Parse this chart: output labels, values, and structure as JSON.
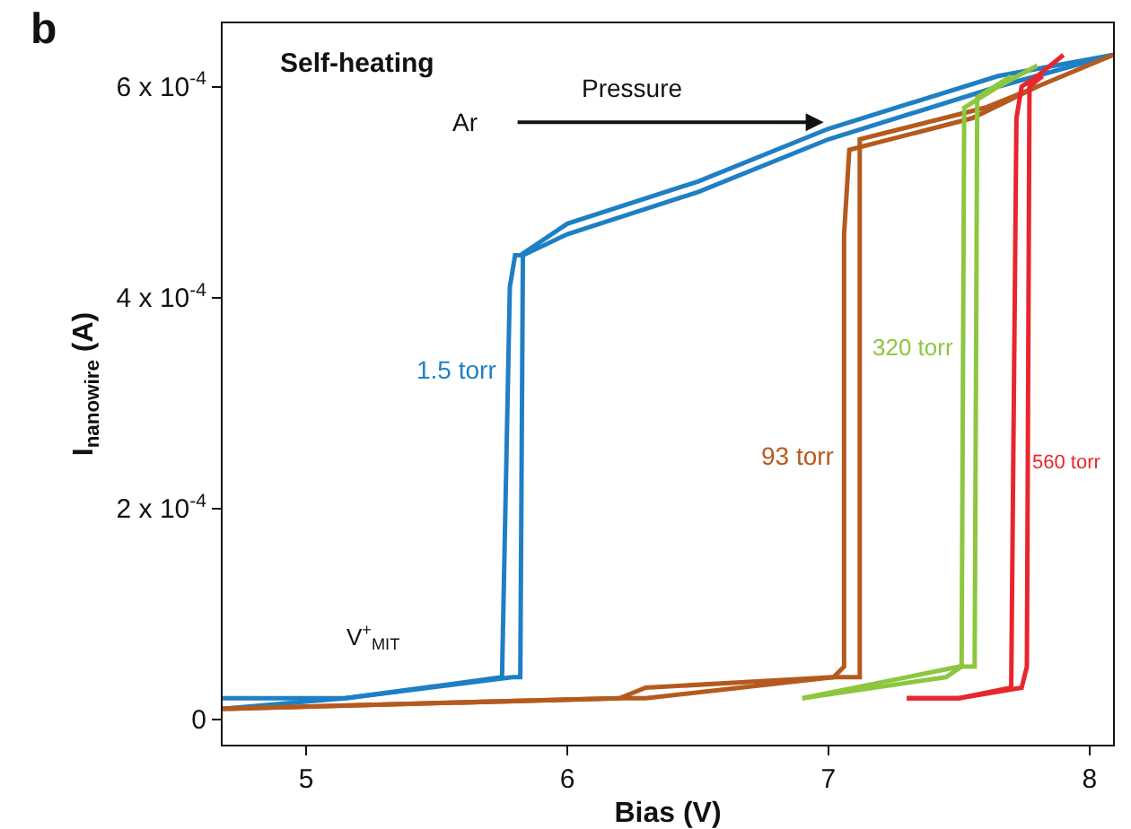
{
  "chart_data": {
    "type": "line",
    "xlabel": "Bias (V)",
    "ylabel": "I$_{nanowire}$ (A)",
    "xlim": [
      4.68,
      8.09
    ],
    "xticks": [
      5,
      6,
      7,
      8
    ],
    "ylim": [
      -2.4e-05,
      0.00066
    ],
    "yticks": [
      {
        "value": 0,
        "label": "0"
      },
      {
        "value": 0.0002,
        "label": "2 x 10$^{-4}$"
      },
      {
        "value": 0.0004,
        "label": "4 x 10$^{-4}$"
      },
      {
        "value": 0.0006,
        "label": "6 x 10$^{-4}$"
      }
    ],
    "grid": false,
    "legend": false,
    "marker": "none",
    "line_style": "solid",
    "series": [
      {
        "name": "1.5 torr",
        "color": "#1f7fc4",
        "x": [
          4.68,
          5.15,
          5.75,
          5.78,
          5.8,
          5.82,
          6.0,
          6.5,
          7.0,
          7.65,
          8.09
        ],
        "values": [
          2e-05,
          2e-05,
          4e-05,
          0.00041,
          0.00044,
          0.00044,
          0.00047,
          0.00051,
          0.00056,
          0.00061,
          0.00063
        ]
      },
      {
        "color": "#1f7fc4",
        "x": [
          4.68,
          5.15,
          5.79,
          5.82,
          5.83,
          6.0,
          6.5,
          7.0,
          7.65,
          8.09
        ],
        "values": [
          1e-05,
          2e-05,
          4e-05,
          4e-05,
          0.00044,
          0.00046,
          0.0005,
          0.00055,
          0.0006,
          0.00063
        ]
      },
      {
        "name": "93 torr",
        "color": "#b55a1e",
        "x": [
          4.68,
          6.2,
          6.3,
          7.02,
          7.06,
          7.06,
          7.08,
          7.55,
          7.8,
          8.09
        ],
        "values": [
          1e-05,
          2e-05,
          3e-05,
          4e-05,
          5e-05,
          0.00046,
          0.00054,
          0.00057,
          0.0006,
          0.00063
        ]
      },
      {
        "color": "#b55a1e",
        "x": [
          4.68,
          6.2,
          6.3,
          7.02,
          7.08,
          7.12,
          7.12,
          7.6,
          7.8
        ],
        "values": [
          1e-05,
          2e-05,
          2e-05,
          4e-05,
          4e-05,
          4e-05,
          0.00055,
          0.00058,
          0.0006
        ]
      },
      {
        "name": "320 torr",
        "color": "#8dc63f",
        "x": [
          6.9,
          7.45,
          7.51,
          7.52,
          7.65,
          7.8
        ],
        "values": [
          2e-05,
          4e-05,
          5e-05,
          0.00058,
          0.0006,
          0.00062
        ]
      },
      {
        "color": "#8dc63f",
        "x": [
          6.9,
          7.5,
          7.56,
          7.57,
          7.7
        ],
        "values": [
          2e-05,
          5e-05,
          5e-05,
          0.00059,
          0.00061
        ]
      },
      {
        "name": "560 torr",
        "color": "#e8262e",
        "x": [
          7.3,
          7.5,
          7.7,
          7.72,
          7.74,
          7.8,
          7.9
        ],
        "values": [
          2e-05,
          2e-05,
          3e-05,
          0.00057,
          0.0006,
          0.00061,
          0.00063
        ]
      },
      {
        "color": "#e8262e",
        "x": [
          7.3,
          7.5,
          7.74,
          7.76,
          7.77,
          7.82
        ],
        "values": [
          2e-05,
          2e-05,
          3e-05,
          5e-05,
          0.0006,
          0.00061
        ]
      }
    ],
    "annotations": [
      "b",
      "Self-heating",
      "Ar",
      "Pressure",
      "V$^{+}$$_{MIT}$"
    ]
  }
}
